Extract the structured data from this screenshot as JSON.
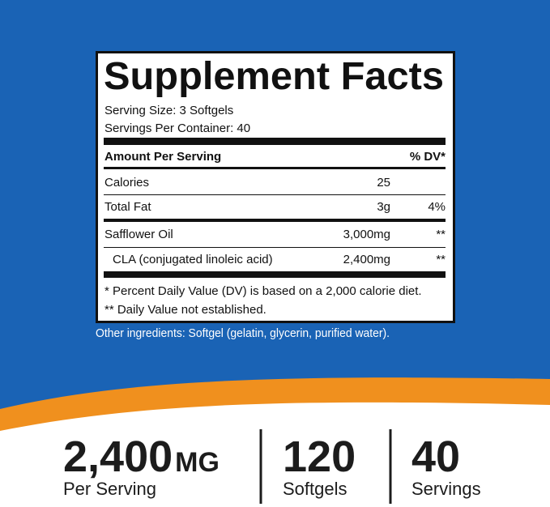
{
  "label": {
    "title": "Supplement Facts",
    "serving_size": "Serving Size: 3 Softgels",
    "servings_per_container": "Servings Per Container: 40",
    "amount_header": "Amount Per Serving",
    "dv_header": "% DV*",
    "rows": [
      {
        "name": "Calories",
        "amount": "25"
      },
      {
        "name": "Total Fat",
        "amount": "3g",
        "dv": "4%"
      },
      {
        "name": "Safflower Oil",
        "amount": "3,000mg",
        "dv": "**"
      },
      {
        "name": "CLA (conjugated linoleic acid)",
        "amount": "2,400mg",
        "dv": "**"
      }
    ],
    "footnotes": [
      "* Percent Daily Value (DV) is based on a 2,000 calorie diet.",
      "** Daily Value not established."
    ]
  },
  "other_ingredients": "Other ingredients: Softgel (gelatin, glycerin, purified water).",
  "stats": [
    {
      "value": "2,400",
      "unit": "MG",
      "caption": "Per Serving"
    },
    {
      "value": "120",
      "caption": "Softgels"
    },
    {
      "value": "40",
      "caption": "Servings"
    }
  ]
}
